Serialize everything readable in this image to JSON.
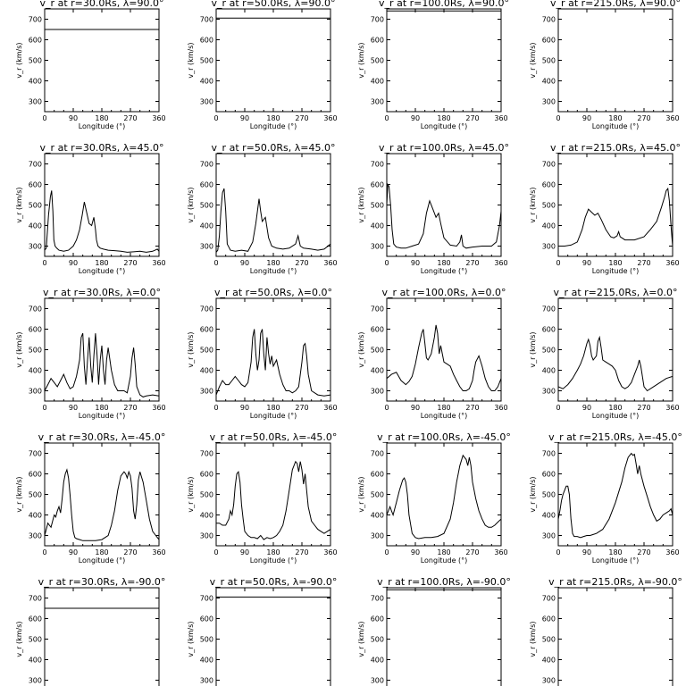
{
  "chart_data": {
    "type": "line",
    "grid_rows": 5,
    "grid_cols": 4,
    "xlabel": "Longitude (°)",
    "ylabel": "v_r (km/s)",
    "xlim": [
      0,
      360
    ],
    "ylim": [
      250,
      750
    ],
    "xticks": [
      0,
      90,
      180,
      270,
      360
    ],
    "yticks": [
      300,
      400,
      500,
      600,
      700
    ],
    "grid": false,
    "panels": [
      {
        "title": "v_r at r=30.0Rs, λ=90.0°",
        "x": [
          0,
          360
        ],
        "y": [
          650,
          650
        ]
      },
      {
        "title": "v_r at r=50.0Rs, λ=90.0°",
        "x": [
          0,
          360
        ],
        "y": [
          705,
          705
        ]
      },
      {
        "title": "v_r at r=100.0Rs, λ=90.0°",
        "x": [
          0,
          360
        ],
        "y": [
          740,
          740
        ]
      },
      {
        "title": "v_r at r=215.0Rs, λ=90.0°",
        "x": [
          0,
          360
        ],
        "y": [
          760,
          760
        ]
      },
      {
        "title": "v_r at r=30.0Rs, λ=45.0°",
        "x": [
          0,
          5,
          12,
          18,
          22,
          26,
          29,
          33,
          38,
          45,
          60,
          75,
          90,
          100,
          110,
          118,
          125,
          130,
          140,
          148,
          155,
          160,
          163,
          168,
          175,
          185,
          200,
          220,
          240,
          260,
          280,
          300,
          320,
          340,
          355,
          360
        ],
        "y": [
          280,
          290,
          450,
          540,
          570,
          470,
          330,
          300,
          290,
          280,
          275,
          280,
          300,
          330,
          380,
          450,
          515,
          480,
          410,
          400,
          440,
          380,
          330,
          300,
          290,
          285,
          280,
          278,
          275,
          270,
          272,
          275,
          270,
          275,
          285,
          275
        ]
      },
      {
        "title": "v_r at r=50.0Rs, λ=45.0°",
        "x": [
          0,
          5,
          10,
          15,
          20,
          25,
          30,
          35,
          45,
          60,
          80,
          100,
          115,
          125,
          135,
          140,
          145,
          155,
          160,
          165,
          175,
          190,
          210,
          230,
          250,
          258,
          265,
          275,
          300,
          320,
          340,
          360
        ],
        "y": [
          270,
          280,
          350,
          470,
          560,
          580,
          470,
          310,
          280,
          275,
          280,
          275,
          320,
          410,
          530,
          470,
          420,
          440,
          390,
          340,
          300,
          290,
          285,
          290,
          310,
          350,
          300,
          290,
          285,
          280,
          285,
          310
        ]
      },
      {
        "title": "v_r at r=100.0Rs, λ=45.0°",
        "x": [
          0,
          3,
          7,
          12,
          17,
          22,
          30,
          45,
          60,
          80,
          100,
          115,
          125,
          135,
          145,
          155,
          163,
          170,
          180,
          200,
          220,
          230,
          235,
          240,
          250,
          270,
          300,
          330,
          345,
          355,
          360
        ],
        "y": [
          500,
          600,
          590,
          500,
          380,
          310,
          295,
          290,
          290,
          300,
          310,
          360,
          460,
          520,
          480,
          440,
          460,
          410,
          340,
          305,
          300,
          320,
          355,
          300,
          290,
          295,
          300,
          300,
          320,
          400,
          470
        ]
      },
      {
        "title": "v_r at r=215.0Rs, λ=45.0°",
        "x": [
          0,
          20,
          40,
          60,
          75,
          85,
          95,
          105,
          115,
          125,
          135,
          150,
          165,
          175,
          185,
          190,
          195,
          210,
          240,
          270,
          290,
          310,
          325,
          335,
          340,
          345,
          350,
          355,
          360
        ],
        "y": [
          300,
          300,
          305,
          320,
          380,
          440,
          480,
          465,
          450,
          460,
          430,
          380,
          345,
          340,
          350,
          370,
          345,
          330,
          330,
          345,
          380,
          420,
          490,
          540,
          570,
          580,
          520,
          400,
          300
        ]
      },
      {
        "title": "v_r at r=30.0Rs, λ=0.0°",
        "x": [
          0,
          10,
          20,
          30,
          40,
          50,
          60,
          70,
          80,
          90,
          100,
          110,
          115,
          120,
          125,
          130,
          135,
          140,
          145,
          150,
          155,
          160,
          165,
          170,
          175,
          180,
          185,
          190,
          195,
          200,
          210,
          220,
          230,
          240,
          250,
          260,
          270,
          275,
          280,
          285,
          290,
          300,
          310,
          320,
          340,
          360
        ],
        "y": [
          300,
          330,
          360,
          340,
          320,
          350,
          380,
          340,
          310,
          320,
          370,
          450,
          560,
          580,
          420,
          330,
          450,
          560,
          420,
          340,
          470,
          580,
          470,
          330,
          450,
          520,
          400,
          330,
          450,
          510,
          400,
          330,
          300,
          300,
          300,
          290,
          370,
          460,
          510,
          430,
          320,
          280,
          270,
          275,
          280,
          275
        ]
      },
      {
        "title": "v_r at r=50.0Rs, λ=0.0°",
        "x": [
          0,
          10,
          20,
          30,
          40,
          50,
          60,
          70,
          80,
          90,
          100,
          110,
          115,
          120,
          125,
          130,
          135,
          140,
          145,
          150,
          155,
          160,
          165,
          170,
          175,
          180,
          190,
          200,
          210,
          220,
          230,
          240,
          250,
          260,
          270,
          275,
          280,
          285,
          290,
          300,
          320,
          340,
          360
        ],
        "y": [
          280,
          320,
          350,
          330,
          330,
          350,
          370,
          350,
          330,
          320,
          340,
          440,
          560,
          600,
          480,
          400,
          450,
          580,
          600,
          480,
          400,
          560,
          480,
          430,
          470,
          420,
          450,
          380,
          330,
          300,
          300,
          290,
          300,
          320,
          440,
          520,
          530,
          470,
          380,
          300,
          280,
          275,
          280
        ]
      },
      {
        "title": "v_r at r=100.0Rs, λ=0.0°",
        "x": [
          0,
          15,
          30,
          45,
          60,
          70,
          80,
          90,
          100,
          110,
          115,
          120,
          125,
          130,
          140,
          150,
          155,
          160,
          165,
          170,
          175,
          180,
          190,
          200,
          210,
          220,
          230,
          240,
          250,
          260,
          270,
          275,
          280,
          290,
          300,
          310,
          320,
          330,
          340,
          350,
          360
        ],
        "y": [
          360,
          380,
          390,
          350,
          330,
          345,
          370,
          430,
          510,
          580,
          600,
          530,
          460,
          450,
          480,
          560,
          620,
          580,
          480,
          520,
          480,
          440,
          430,
          420,
          380,
          350,
          320,
          300,
          300,
          310,
          350,
          400,
          440,
          470,
          420,
          360,
          320,
          300,
          300,
          320,
          360
        ]
      },
      {
        "title": "v_r at r=215.0Rs, λ=0.0°",
        "x": [
          0,
          15,
          30,
          45,
          60,
          70,
          80,
          90,
          95,
          100,
          105,
          110,
          120,
          125,
          130,
          135,
          140,
          150,
          160,
          170,
          180,
          190,
          200,
          210,
          220,
          230,
          240,
          250,
          255,
          260,
          270,
          280,
          300,
          320,
          340,
          360
        ],
        "y": [
          320,
          310,
          330,
          360,
          400,
          430,
          470,
          530,
          550,
          520,
          470,
          450,
          470,
          540,
          560,
          510,
          450,
          440,
          430,
          420,
          400,
          350,
          320,
          310,
          320,
          340,
          380,
          420,
          450,
          420,
          320,
          300,
          320,
          340,
          360,
          370
        ]
      },
      {
        "title": "v_r at r=30.0Rs, λ=-45.0°",
        "x": [
          0,
          5,
          10,
          15,
          20,
          25,
          30,
          35,
          40,
          45,
          50,
          55,
          60,
          65,
          70,
          75,
          80,
          85,
          90,
          95,
          100,
          110,
          120,
          140,
          160,
          180,
          200,
          210,
          220,
          230,
          240,
          250,
          255,
          260,
          265,
          270,
          275,
          280,
          285,
          290,
          295,
          300,
          310,
          320,
          330,
          340,
          350,
          355,
          360
        ],
        "y": [
          300,
          330,
          360,
          350,
          340,
          370,
          400,
          390,
          420,
          440,
          410,
          480,
          560,
          600,
          620,
          580,
          500,
          400,
          320,
          290,
          285,
          280,
          275,
          275,
          275,
          280,
          300,
          350,
          420,
          520,
          590,
          610,
          600,
          580,
          610,
          590,
          530,
          420,
          380,
          450,
          570,
          610,
          560,
          470,
          380,
          320,
          300,
          290,
          280
        ]
      },
      {
        "title": "v_r at r=50.0Rs, λ=-45.0°",
        "x": [
          0,
          10,
          20,
          30,
          40,
          45,
          50,
          55,
          60,
          65,
          70,
          75,
          80,
          85,
          90,
          100,
          110,
          120,
          130,
          140,
          150,
          160,
          170,
          180,
          190,
          200,
          210,
          220,
          230,
          240,
          250,
          255,
          260,
          265,
          270,
          275,
          280,
          285,
          290,
          300,
          310,
          320,
          330,
          340,
          350,
          360
        ],
        "y": [
          360,
          360,
          350,
          350,
          380,
          420,
          400,
          450,
          540,
          600,
          610,
          560,
          450,
          380,
          320,
          300,
          290,
          290,
          285,
          300,
          280,
          290,
          285,
          290,
          300,
          320,
          350,
          420,
          520,
          620,
          660,
          650,
          610,
          660,
          620,
          550,
          600,
          520,
          440,
          370,
          350,
          330,
          320,
          310,
          320,
          330
        ]
      },
      {
        "title": "v_r at r=100.0Rs, λ=-45.0°",
        "x": [
          0,
          5,
          10,
          15,
          20,
          25,
          30,
          40,
          50,
          55,
          60,
          65,
          70,
          80,
          90,
          100,
          120,
          140,
          160,
          180,
          200,
          210,
          220,
          230,
          240,
          250,
          255,
          260,
          265,
          270,
          275,
          280,
          290,
          300,
          310,
          320,
          330,
          340,
          350,
          360
        ],
        "y": [
          400,
          420,
          440,
          420,
          400,
          430,
          460,
          520,
          570,
          580,
          560,
          500,
          400,
          310,
          290,
          285,
          290,
          290,
          295,
          310,
          380,
          460,
          560,
          640,
          690,
          670,
          640,
          680,
          640,
          560,
          520,
          480,
          420,
          380,
          350,
          340,
          340,
          350,
          365,
          380
        ]
      },
      {
        "title": "v_r at r=215.0Rs, λ=-45.0°",
        "x": [
          0,
          5,
          10,
          15,
          20,
          25,
          30,
          35,
          40,
          45,
          50,
          60,
          70,
          80,
          90,
          100,
          110,
          120,
          140,
          160,
          180,
          200,
          210,
          220,
          230,
          235,
          240,
          245,
          250,
          255,
          260,
          270,
          280,
          290,
          300,
          310,
          320,
          330,
          340,
          350,
          355,
          360
        ],
        "y": [
          380,
          420,
          470,
          500,
          520,
          540,
          540,
          500,
          380,
          310,
          295,
          295,
          290,
          295,
          300,
          300,
          305,
          310,
          330,
          380,
          460,
          560,
          630,
          680,
          700,
          690,
          695,
          650,
          600,
          640,
          600,
          540,
          490,
          440,
          400,
          370,
          380,
          400,
          410,
          420,
          430,
          400
        ]
      },
      {
        "title": "v_r at r=30.0Rs, λ=-90.0°",
        "x": [
          0,
          360
        ],
        "y": [
          650,
          650
        ]
      },
      {
        "title": "v_r at r=50.0Rs, λ=-90.0°",
        "x": [
          0,
          360
        ],
        "y": [
          705,
          705
        ]
      },
      {
        "title": "v_r at r=100.0Rs, λ=-90.0°",
        "x": [
          0,
          360
        ],
        "y": [
          740,
          740
        ]
      },
      {
        "title": "v_r at r=215.0Rs, λ=-90.0°",
        "x": [
          0,
          360
        ],
        "y": [
          760,
          760
        ]
      }
    ]
  }
}
